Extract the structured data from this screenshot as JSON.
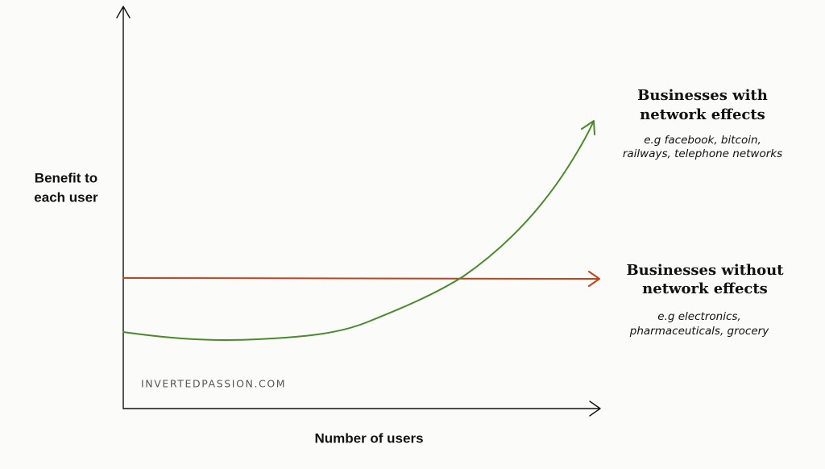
{
  "labels": {
    "y_axis": [
      "Benefit to",
      "each user"
    ],
    "x_axis": "Number of users",
    "with_network": {
      "title": [
        "Businesses with",
        "network effects"
      ],
      "examples": [
        "e.g facebook, bitcoin,",
        "railways, telephone networks"
      ]
    },
    "without_network": {
      "title": [
        "Businesses without",
        "network effects"
      ],
      "examples": [
        "e.g electronics,",
        "pharmaceuticals, grocery"
      ]
    },
    "watermark": "INVERTEDPASSION.COM"
  }
}
